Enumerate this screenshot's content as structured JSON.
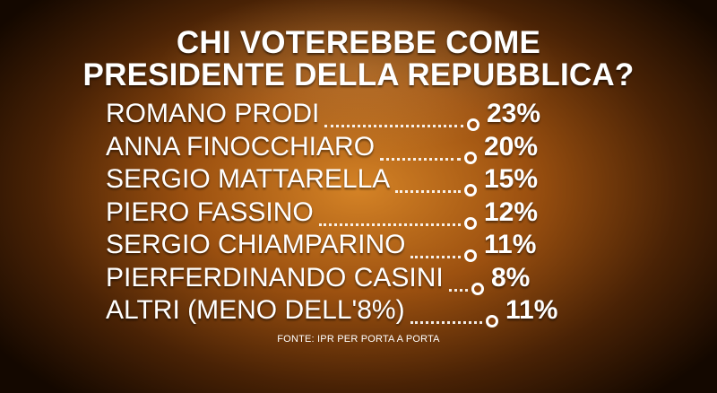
{
  "title_line1": "CHI VOTEREBBE COME",
  "title_line2": "PRESIDENTE DELLA REPUBBLICA?",
  "source": "FONTE: IPR PER PORTA A PORTA",
  "chart_data": {
    "type": "table",
    "title": "CHI VOTEREBBE COME PRESIDENTE DELLA REPUBBLICA?",
    "unit": "%",
    "categories": [
      "ROMANO PRODI",
      "ANNA FINOCCHIARO",
      "SERGIO MATTARELLA",
      "PIERO FASSINO",
      "SERGIO CHIAMPARINO",
      "PIERFERDINANDO CASINI",
      "ALTRI (MENO DELL'8%)"
    ],
    "values": [
      23,
      20,
      15,
      12,
      11,
      8,
      11
    ],
    "labels": [
      "23%",
      "20%",
      "15%",
      "12%",
      "11%",
      "8%",
      "11%"
    ]
  },
  "colors": {
    "background_center": "#e08a28",
    "background_edge": "#140800",
    "text": "#ffffff"
  }
}
